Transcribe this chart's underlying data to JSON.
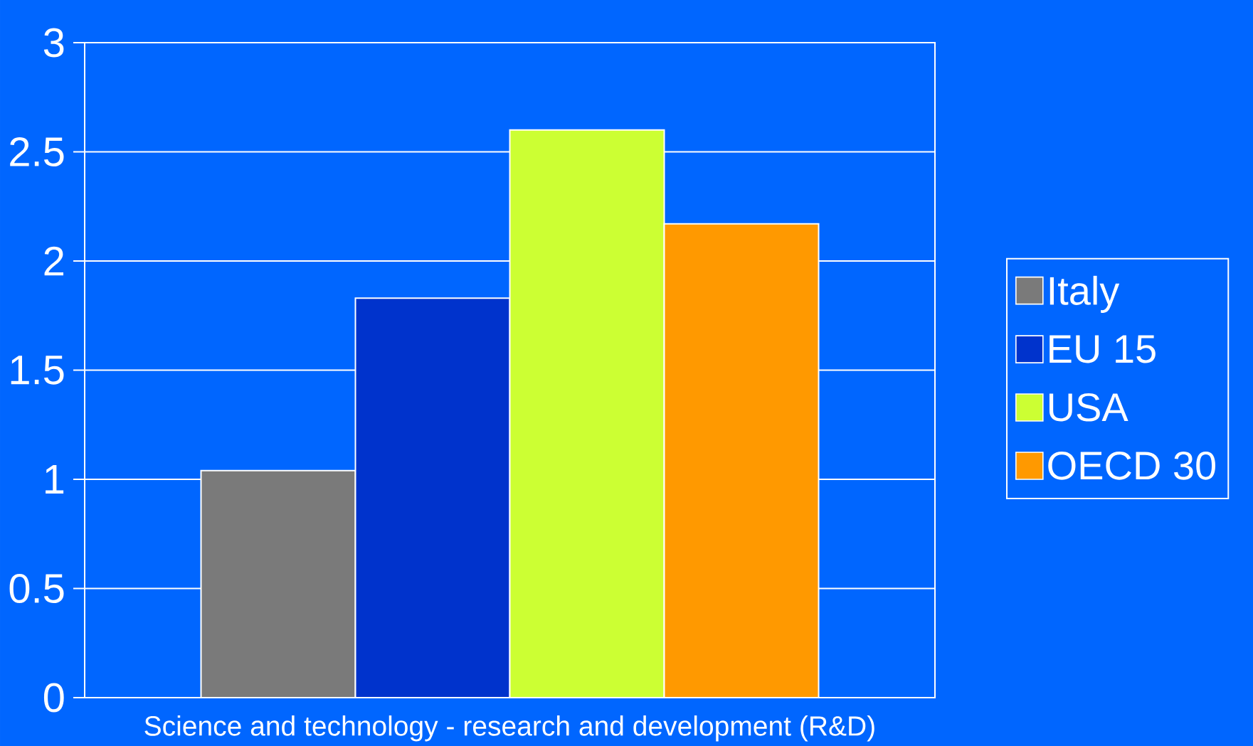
{
  "chart_data": {
    "type": "bar",
    "categories": [
      "Science and technology - research and development (R&D)"
    ],
    "series": [
      {
        "name": "Italy",
        "color": "#7a7a7a",
        "values": [
          1.04
        ]
      },
      {
        "name": "EU 15",
        "color": "#0033cc",
        "values": [
          1.83
        ]
      },
      {
        "name": "USA",
        "color": "#ccff33",
        "values": [
          2.6
        ]
      },
      {
        "name": "OECD 30",
        "color": "#ff9900",
        "values": [
          2.17
        ]
      }
    ],
    "ylim": [
      0,
      3
    ],
    "yticks": [
      0,
      0.5,
      1,
      1.5,
      2,
      2.5,
      3
    ],
    "grid": "y",
    "legend": "right"
  }
}
